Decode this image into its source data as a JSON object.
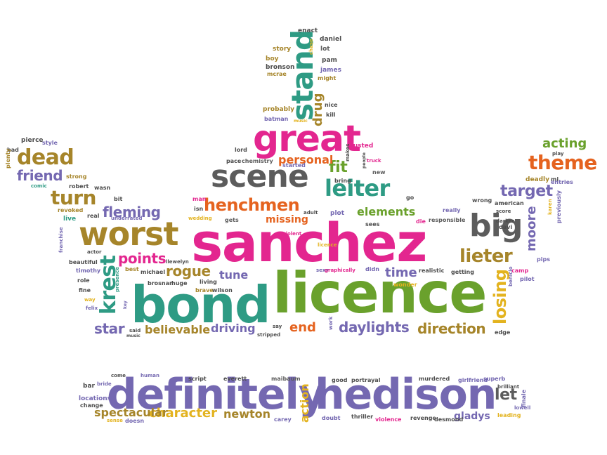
{
  "palette": {
    "pink": "#e3268f",
    "green": "#6aa12c",
    "teal": "#2e9b84",
    "purple": "#7468b1",
    "gray": "#5c5c5c",
    "orange": "#e5631f",
    "olive": "#a6852a",
    "gold": "#e3b31f",
    "dark": "#4d4d4d"
  },
  "words": [
    "sanchez",
    "bond",
    "licence",
    "definitely",
    "hedison",
    "worst",
    "big",
    "great",
    "scene",
    "stand",
    "leiter",
    "henchmen",
    "dead",
    "theme",
    "turn",
    "krest",
    "target",
    "lieter",
    "acting",
    "rogue",
    "points",
    "fleming",
    "moore",
    "losing",
    "friend",
    "end",
    "daylights",
    "direction",
    "star",
    "believable",
    "driving",
    "elements",
    "fit",
    "personal",
    "time",
    "character",
    "newton",
    "action",
    "spectacular",
    "let",
    "drug",
    "tune",
    "missing",
    "gladys",
    "enact",
    "daniel",
    "story",
    "lot",
    "boy",
    "pam",
    "bronson",
    "mcrae",
    "james",
    "might",
    "chase",
    "probably",
    "nice",
    "batman",
    "kill",
    "music",
    "pierce",
    "style",
    "bad",
    "plenty",
    "strong",
    "comic",
    "robert",
    "wasn",
    "revoked",
    "live",
    "underrated",
    "real",
    "franchise",
    "bit",
    "lord",
    "trusted",
    "pace",
    "chemistry",
    "started",
    "bring",
    "makes",
    "new",
    "truck",
    "people",
    "man",
    "isn",
    "wedding",
    "gets",
    "adult",
    "plot",
    "sees",
    "go",
    "die",
    "responsible",
    "really",
    "wrong",
    "american",
    "deadly",
    "mi",
    "entries",
    "play",
    "darker",
    "davi",
    "score",
    "previously",
    "karen",
    "actor",
    "beautiful",
    "timothy",
    "role",
    "fine",
    "way",
    "felix",
    "best",
    "michael",
    "llewelyn",
    "brosnan",
    "huge",
    "living",
    "brave",
    "wilson",
    "presence",
    "key",
    "said",
    "music",
    "stripped",
    "say",
    "violent",
    "licence",
    "sexy",
    "graphically",
    "didn",
    "wonder",
    "realistic",
    "getting",
    "camp",
    "pilot",
    "benicio",
    "pips",
    "edge",
    "work",
    "come",
    "human",
    "script",
    "everett",
    "maibaum",
    "good",
    "portrayal",
    "murdered",
    "girlfriend",
    "superb",
    "brilliant",
    "bar",
    "bride",
    "locations",
    "change",
    "sense",
    "doesn",
    "carey",
    "doubt",
    "thriller",
    "violence",
    "revenge",
    "desmond",
    "leading",
    "finale",
    "lowell"
  ]
}
